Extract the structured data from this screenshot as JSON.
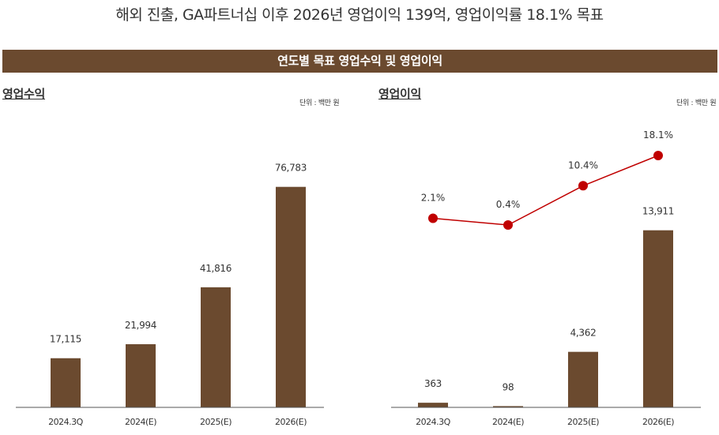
{
  "headline": "해외 진출, GA파트너십 이후 2026년 영업이익 139억, 영업이익률 18.1% 목표",
  "banner": "연도별 목표 영업수익 및 영업이익",
  "colors": {
    "bar": "#6b4a2f",
    "line": "#c00000",
    "axis": "#555555"
  },
  "chart_data": [
    {
      "type": "bar",
      "title": "영업수익",
      "unit": "단위 : 백만 원",
      "categories": [
        "2024.3Q",
        "2024(E)",
        "2025(E)",
        "2026(E)"
      ],
      "values": [
        17115,
        21994,
        41816,
        76783
      ],
      "value_labels": [
        "17,115",
        "21,994",
        "41,816",
        "76,783"
      ],
      "ylim": [
        0,
        80000
      ],
      "grid": false
    },
    {
      "type": "bar",
      "title": "영업이익",
      "unit": "단위 : 백만 원",
      "categories": [
        "2024.3Q",
        "2024(E)",
        "2025(E)",
        "2026(E)"
      ],
      "values": [
        363,
        98,
        4362,
        13911
      ],
      "value_labels": [
        "363",
        "98",
        "4,362",
        "13,911"
      ],
      "ylim": [
        0,
        16000
      ],
      "grid": false,
      "overlay_line": {
        "values": [
          2.1,
          0.4,
          10.4,
          18.1
        ],
        "value_labels": [
          "2.1%",
          "0.4%",
          "10.4%",
          "18.1%"
        ]
      }
    }
  ]
}
